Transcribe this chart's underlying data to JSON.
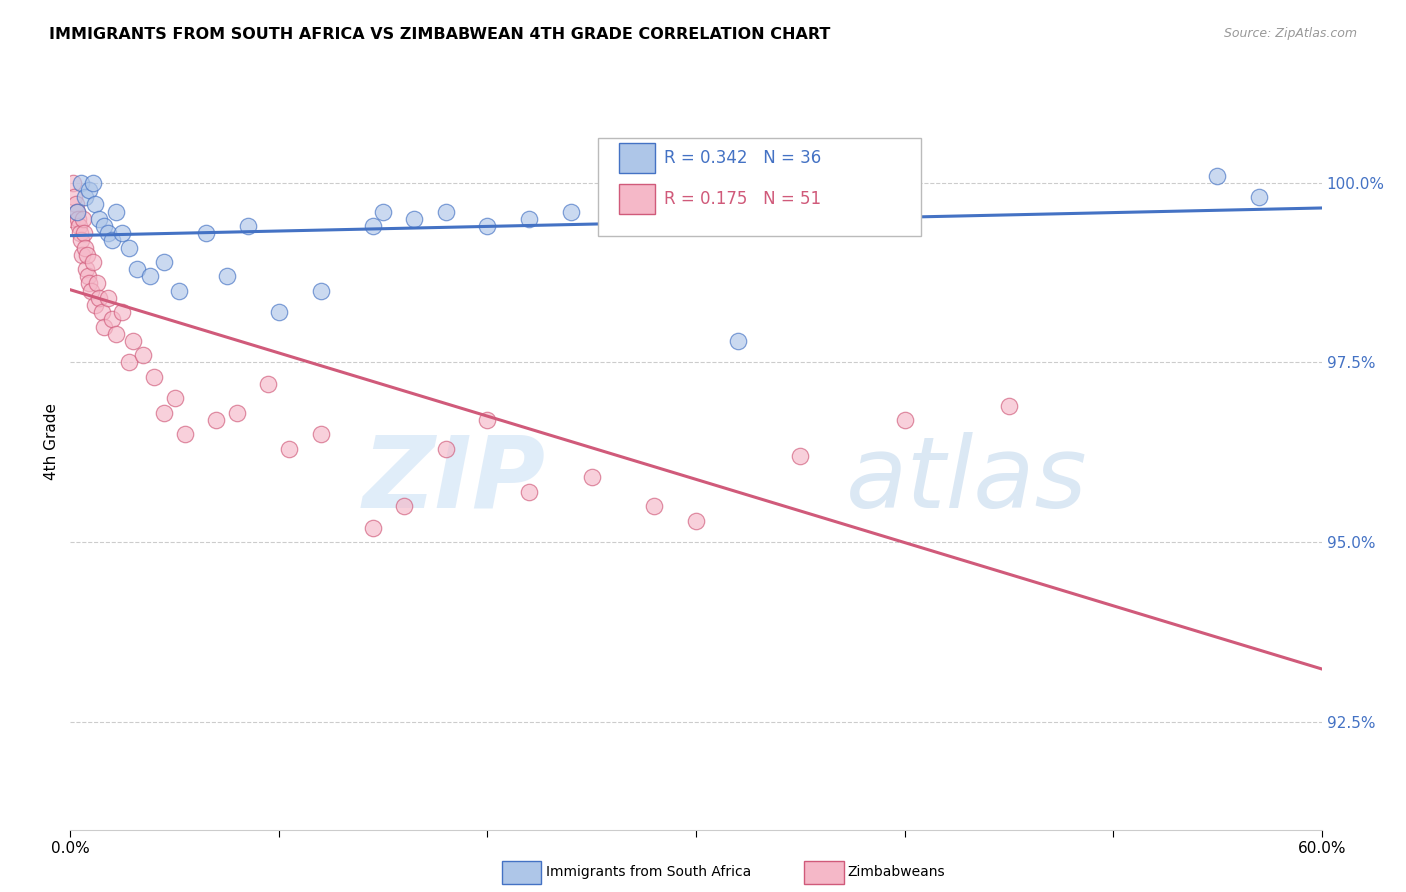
{
  "title": "IMMIGRANTS FROM SOUTH AFRICA VS ZIMBABWEAN 4TH GRADE CORRELATION CHART",
  "source": "Source: ZipAtlas.com",
  "ylabel": "4th Grade",
  "xlim": [
    0.0,
    60.0
  ],
  "ylim": [
    91.0,
    101.8
  ],
  "yticks": [
    92.5,
    95.0,
    97.5,
    100.0
  ],
  "ytick_labels": [
    "92.5%",
    "95.0%",
    "97.5%",
    "100.0%"
  ],
  "blue_R": 0.342,
  "blue_N": 36,
  "pink_R": 0.175,
  "pink_N": 51,
  "blue_color": "#aec6e8",
  "blue_line_color": "#4472c4",
  "pink_color": "#f5b8c8",
  "pink_line_color": "#d05a7a",
  "blue_scatter_x": [
    0.3,
    0.5,
    0.7,
    0.9,
    1.1,
    1.2,
    1.4,
    1.6,
    1.8,
    2.0,
    2.2,
    2.5,
    2.8,
    3.2,
    3.8,
    4.5,
    5.2,
    6.5,
    7.5,
    8.5,
    10.0,
    12.0,
    14.5,
    15.0,
    16.5,
    18.0,
    20.0,
    22.0,
    24.0,
    26.0,
    28.0,
    30.0,
    32.0,
    35.0,
    55.0,
    57.0
  ],
  "blue_scatter_y": [
    99.6,
    100.0,
    99.8,
    99.9,
    100.0,
    99.7,
    99.5,
    99.4,
    99.3,
    99.2,
    99.6,
    99.3,
    99.1,
    98.8,
    98.7,
    98.9,
    98.5,
    99.3,
    98.7,
    99.4,
    98.2,
    98.5,
    99.4,
    99.6,
    99.5,
    99.6,
    99.4,
    99.5,
    99.6,
    99.7,
    99.6,
    99.8,
    97.8,
    99.8,
    100.1,
    99.8
  ],
  "pink_scatter_x": [
    0.1,
    0.15,
    0.2,
    0.25,
    0.3,
    0.35,
    0.4,
    0.45,
    0.5,
    0.55,
    0.6,
    0.65,
    0.7,
    0.75,
    0.8,
    0.85,
    0.9,
    1.0,
    1.1,
    1.2,
    1.3,
    1.4,
    1.5,
    1.6,
    1.8,
    2.0,
    2.2,
    2.5,
    2.8,
    3.0,
    3.5,
    4.0,
    4.5,
    5.0,
    5.5,
    7.0,
    8.0,
    9.5,
    10.5,
    12.0,
    14.5,
    16.0,
    18.0,
    20.0,
    22.0,
    25.0,
    28.0,
    30.0,
    35.0,
    40.0,
    45.0
  ],
  "pink_scatter_y": [
    99.5,
    100.0,
    99.8,
    99.7,
    99.6,
    99.5,
    99.4,
    99.3,
    99.2,
    99.0,
    99.5,
    99.3,
    99.1,
    98.8,
    99.0,
    98.7,
    98.6,
    98.5,
    98.9,
    98.3,
    98.6,
    98.4,
    98.2,
    98.0,
    98.4,
    98.1,
    97.9,
    98.2,
    97.5,
    97.8,
    97.6,
    97.3,
    96.8,
    97.0,
    96.5,
    96.7,
    96.8,
    97.2,
    96.3,
    96.5,
    95.2,
    95.5,
    96.3,
    96.7,
    95.7,
    95.9,
    95.5,
    95.3,
    96.2,
    96.7,
    96.9
  ],
  "background_color": "#ffffff",
  "grid_color": "#cccccc",
  "watermark_zip": "ZIP",
  "watermark_atlas": "atlas"
}
